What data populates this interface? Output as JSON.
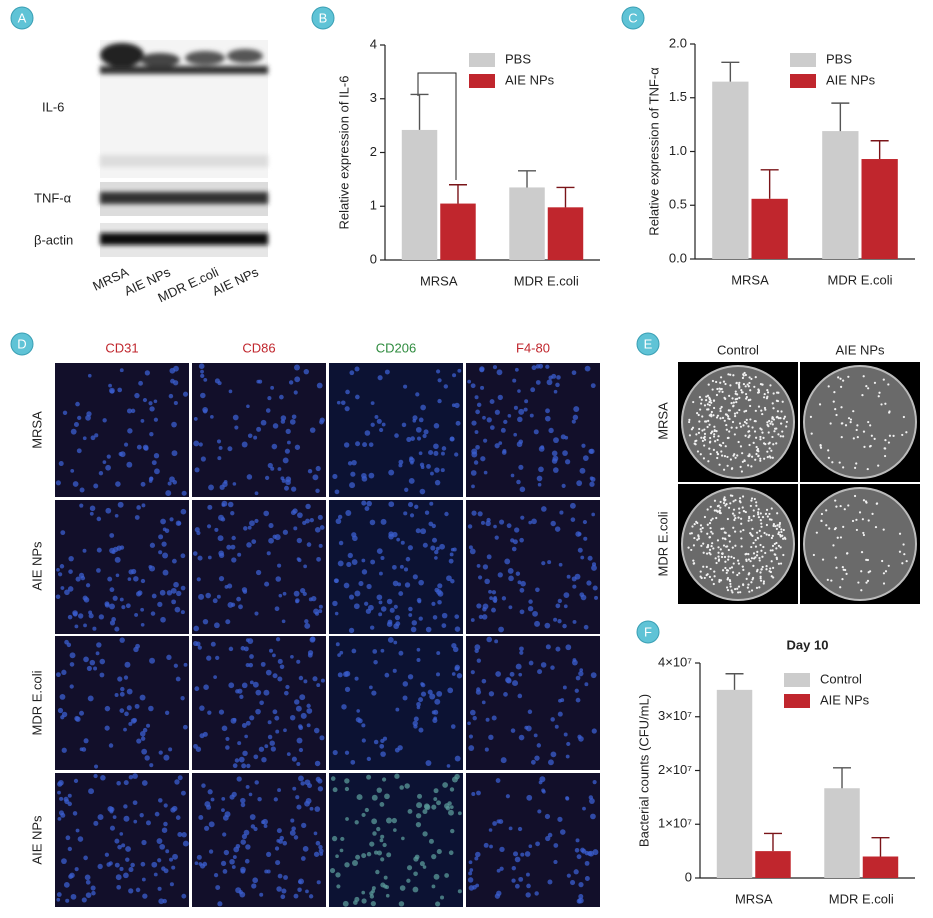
{
  "panels": [
    "A",
    "B",
    "C",
    "D",
    "E",
    "F"
  ],
  "blot": {
    "bands": [
      "IL-6",
      "TNF-α",
      "β-actin"
    ],
    "lanes": [
      "MRSA",
      "AIE NPs",
      "MDR E.coli",
      "AIE NPs"
    ]
  },
  "staining": {
    "columns": [
      "CD31",
      "CD86",
      "CD206",
      "F4-80"
    ],
    "rows": [
      "MRSA",
      "AIE NPs",
      "MDR E.coli",
      "AIE NPs"
    ]
  },
  "plates": {
    "columns": [
      "Control",
      "AIE NPs"
    ],
    "rows": [
      "MRSA",
      "MDR E.coli"
    ]
  },
  "chart_data": [
    {
      "type": "bar",
      "y_label": "Relative expression of IL-6",
      "categories": [
        "MRSA",
        "MDR E.coli"
      ],
      "series": [
        {
          "name": "PBS",
          "color": "#cccccc",
          "values": [
            2.42,
            1.35
          ],
          "errors": [
            0.66,
            0.31
          ]
        },
        {
          "name": "AIE NPs",
          "color": "#c0262d",
          "values": [
            1.05,
            0.98
          ],
          "errors": [
            0.35,
            0.37
          ]
        }
      ],
      "ylim": [
        0,
        4
      ],
      "yticks": [
        0,
        1,
        2,
        3,
        4
      ]
    },
    {
      "type": "bar",
      "y_label": "Relative expression of TNF-α",
      "categories": [
        "MRSA",
        "MDR E.coli"
      ],
      "series": [
        {
          "name": "PBS",
          "color": "#cccccc",
          "values": [
            1.65,
            1.19
          ],
          "errors": [
            0.18,
            0.26
          ]
        },
        {
          "name": "AIE NPs",
          "color": "#c0262d",
          "values": [
            0.56,
            0.93
          ],
          "errors": [
            0.27,
            0.17
          ]
        }
      ],
      "ylim": [
        0,
        2
      ],
      "yticks": [
        {
          "value": 0,
          "label": "0.0"
        },
        0.5,
        {
          "value": 1,
          "label": "1.0"
        },
        1.5,
        {
          "value": 2,
          "label": "2.0"
        }
      ]
    },
    {
      "type": "bar",
      "title": "Day 10",
      "y_label": "Bacterial counts (CFU/mL)",
      "categories": [
        "MRSA",
        "MDR E.coli"
      ],
      "series": [
        {
          "name": "Control",
          "color": "#cccccc",
          "values": [
            35000000,
            16700000
          ],
          "errors": [
            3000000,
            3800000
          ]
        },
        {
          "name": "AIE NPs",
          "color": "#c0262d",
          "values": [
            5000000,
            4000000
          ],
          "errors": [
            3300000,
            3500000
          ]
        }
      ],
      "ylim": [
        0,
        40000000
      ],
      "yticks": [
        0,
        {
          "value": 10000000,
          "label": "1×10⁷"
        },
        {
          "value": 20000000,
          "label": "2×10⁷"
        },
        {
          "value": 30000000,
          "label": "3×10⁷"
        },
        {
          "value": 40000000,
          "label": "4×10⁷"
        }
      ]
    }
  ]
}
